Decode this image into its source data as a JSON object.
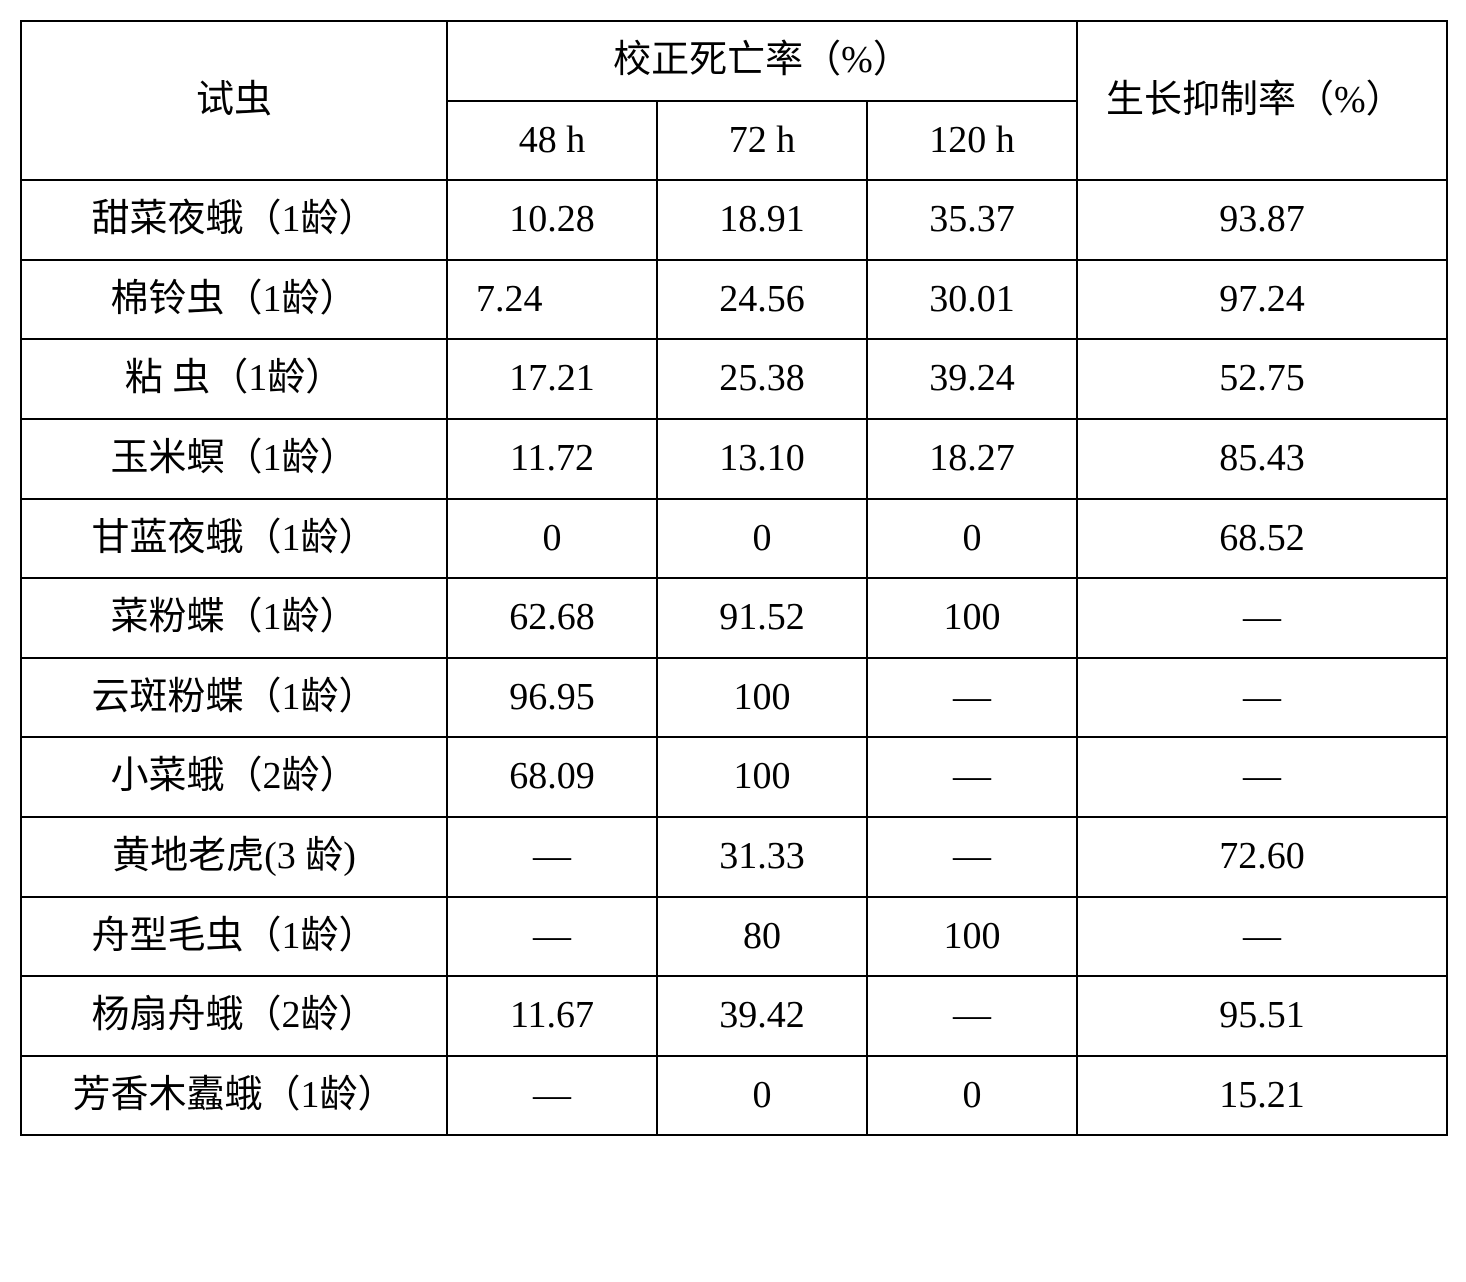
{
  "table": {
    "headers": {
      "insect": "试虫",
      "mortality": "校正死亡率（%）",
      "growth": "生长抑制率（%）",
      "t48": "48 h",
      "t72": "72 h",
      "t120": "120 h"
    },
    "rows": [
      {
        "insect": "甜菜夜蛾（1龄）",
        "t48": "10.28",
        "t72": "18.91",
        "t120": "35.37",
        "growth": "93.87",
        "t48_class": "center"
      },
      {
        "insect": "棉铃虫（1龄）",
        "t48": "7.24",
        "t72": "24.56",
        "t120": "30.01",
        "growth": "97.24",
        "t48_class": "left-pad"
      },
      {
        "insect": "粘  虫（1龄）",
        "t48": "17.21",
        "t72": "25.38",
        "t120": "39.24",
        "growth": "52.75",
        "t48_class": "center"
      },
      {
        "insect": "玉米螟（1龄）",
        "t48": "11.72",
        "t72": "13.10",
        "t120": "18.27",
        "growth": "85.43",
        "t48_class": "center"
      },
      {
        "insect": "甘蓝夜蛾（1龄）",
        "t48": "0",
        "t72": "0",
        "t120": "0",
        "growth": "68.52",
        "t48_class": "center"
      },
      {
        "insect": "菜粉蝶（1龄）",
        "t48": "62.68",
        "t72": "91.52",
        "t120": "100",
        "growth": "—",
        "t48_class": "center"
      },
      {
        "insect": "云斑粉蝶（1龄）",
        "t48": "96.95",
        "t72": "100",
        "t120": "—",
        "growth": "—",
        "t48_class": "center"
      },
      {
        "insect": "小菜蛾（2龄）",
        "t48": "68.09",
        "t72": "100",
        "t120": "—",
        "growth": "—",
        "t48_class": "center"
      },
      {
        "insect": "黄地老虎(3 龄)",
        "t48": "—",
        "t72": "31.33",
        "t120": "—",
        "growth": "72.60",
        "t48_class": "center"
      },
      {
        "insect": "舟型毛虫（1龄）",
        "t48": "—",
        "t72": "80",
        "t120": "100",
        "growth": "—",
        "t48_class": "center"
      },
      {
        "insect": "杨扇舟蛾（2龄）",
        "t48": "11.67",
        "t72": "39.42",
        "t120": "—",
        "growth": "95.51",
        "t48_class": "center"
      },
      {
        "insect": "芳香木蠹蛾（1龄）",
        "t48": "—",
        "t72": "0",
        "t120": "0",
        "growth": "15.21",
        "t48_class": "center"
      }
    ],
    "colors": {
      "border": "#000000",
      "background": "#ffffff",
      "text": "#000000"
    },
    "font_size": 38,
    "border_width": 2
  }
}
